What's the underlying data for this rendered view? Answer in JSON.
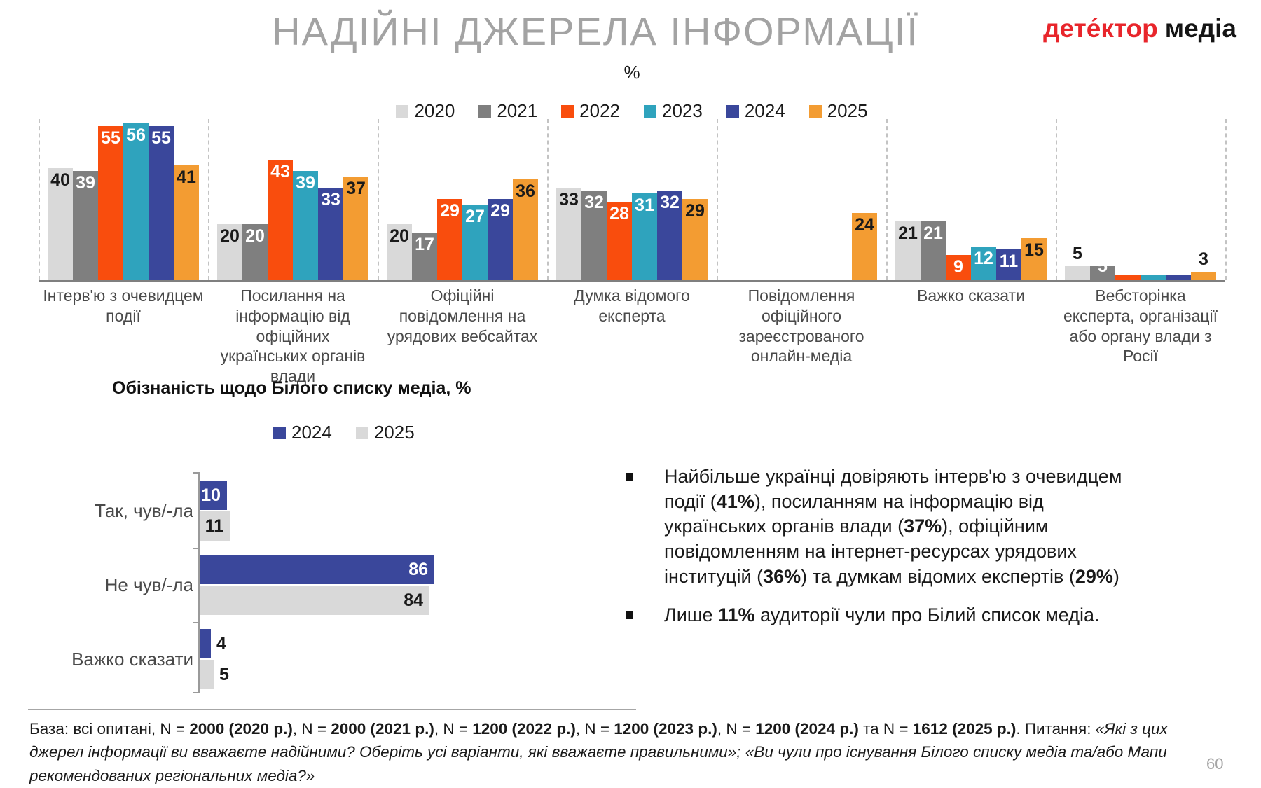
{
  "header": {
    "title": "НАДІЙНІ ДЖЕРЕЛА ІНФОРМАЦІЇ",
    "logo_part1": "дете́ктор",
    "logo_part2": "медіа",
    "page_number": "60"
  },
  "chart_data": [
    {
      "type": "bar",
      "title": "НАДІЙНІ ДЖЕРЕЛА ІНФОРМАЦІЇ",
      "unit_label": "%",
      "legend_position": "top",
      "grid": false,
      "ylim": [
        0,
        60
      ],
      "series_names": [
        "2020",
        "2021",
        "2022",
        "2023",
        "2024",
        "2025"
      ],
      "series_colors": [
        "#D9D9D9",
        "#7F7F7F",
        "#F94D0D",
        "#2FA3BD",
        "#3A479B",
        "#F39C32"
      ],
      "series_label_colors": [
        "#1a1a1a",
        "#FFFFFF",
        "#FFFFFF",
        "#FFFFFF",
        "#FFFFFF",
        "#1a1a1a"
      ],
      "categories": [
        "Інтерв'ю з очевидцем події",
        "Посилання на інформацію від офіційних українських органів влади",
        "Офіційні повідомлення на урядових вебсайтах",
        "Думка відомого експерта",
        "Повідомлення офіційного зареєстрованого онлайн-медіа",
        "Важко сказати",
        "Вебсторінка експерта, організації або органу влади з Росії"
      ],
      "groups": [
        {
          "values": [
            40,
            39,
            55,
            56,
            55,
            41
          ]
        },
        {
          "values": [
            20,
            20,
            43,
            39,
            33,
            37
          ]
        },
        {
          "values": [
            20,
            17,
            29,
            27,
            29,
            36
          ]
        },
        {
          "values": [
            33,
            32,
            28,
            31,
            32,
            29
          ]
        },
        {
          "values": [
            null,
            null,
            null,
            null,
            null,
            24
          ]
        },
        {
          "values": [
            21,
            21,
            9,
            12,
            11,
            15
          ]
        },
        {
          "values": [
            5,
            5,
            2,
            2,
            2,
            3
          ],
          "labels": [
            "5",
            "5",
            "",
            "",
            "",
            "3"
          ]
        }
      ]
    },
    {
      "type": "bar-horizontal",
      "title": "Обізнаність щодо Білого списку медіа, %",
      "xlim": [
        0,
        100
      ],
      "legend_position": "top-right",
      "categories": [
        "Так, чув/-ла",
        "Не чув/-ла",
        "Важко сказати"
      ],
      "series": [
        {
          "name": "2024",
          "color": "#3A479B",
          "values": [
            10,
            86,
            4
          ]
        },
        {
          "name": "2025",
          "color": "#D9D9D9",
          "values": [
            11,
            84,
            5
          ]
        }
      ]
    }
  ],
  "insights": {
    "bullet1": [
      {
        "t": "Найбільше українці довіряють інтерв'ю з очевидцем події ("
      },
      {
        "t": "41%",
        "b": 1
      },
      {
        "t": "), посиланням на інформацію від українських органів влади ("
      },
      {
        "t": "37%",
        "b": 1
      },
      {
        "t": "), офіційним повідомленням на інтернет-ресурсах урядових інституцій ("
      },
      {
        "t": "36%",
        "b": 1
      },
      {
        "t": ") та думкам відомих експертів ("
      },
      {
        "t": "29%",
        "b": 1
      },
      {
        "t": ")"
      }
    ],
    "bullet2": [
      {
        "t": "Лише "
      },
      {
        "t": "11%",
        "b": 1
      },
      {
        "t": " аудиторії чули про Білий список медіа."
      }
    ]
  },
  "footer": {
    "segments": [
      {
        "t": "База: всі опитані, N = "
      },
      {
        "t": "2000 (2020 р.)",
        "b": 1
      },
      {
        "t": ", N = "
      },
      {
        "t": "2000 (2021 р.)",
        "b": 1
      },
      {
        "t": ", N = "
      },
      {
        "t": "1200 (2022 р.)",
        "b": 1
      },
      {
        "t": ", N = "
      },
      {
        "t": "1200 (2023 р.)",
        "b": 1
      },
      {
        "t": ", N = "
      },
      {
        "t": "1200 (2024 р.)",
        "b": 1
      },
      {
        "t": " та N = "
      },
      {
        "t": "1612 (2025 р.)",
        "b": 1
      },
      {
        "t": ". Питання: "
      },
      {
        "t": "«Які з цих джерел інформації ви вважаєте надійними? Оберіть усі варіанти, які вважаєте правильними»; «Ви чули про існування Білого списку медіа та/або Мапи рекомендованих регіональних медіа?»",
        "i": 1
      }
    ]
  }
}
